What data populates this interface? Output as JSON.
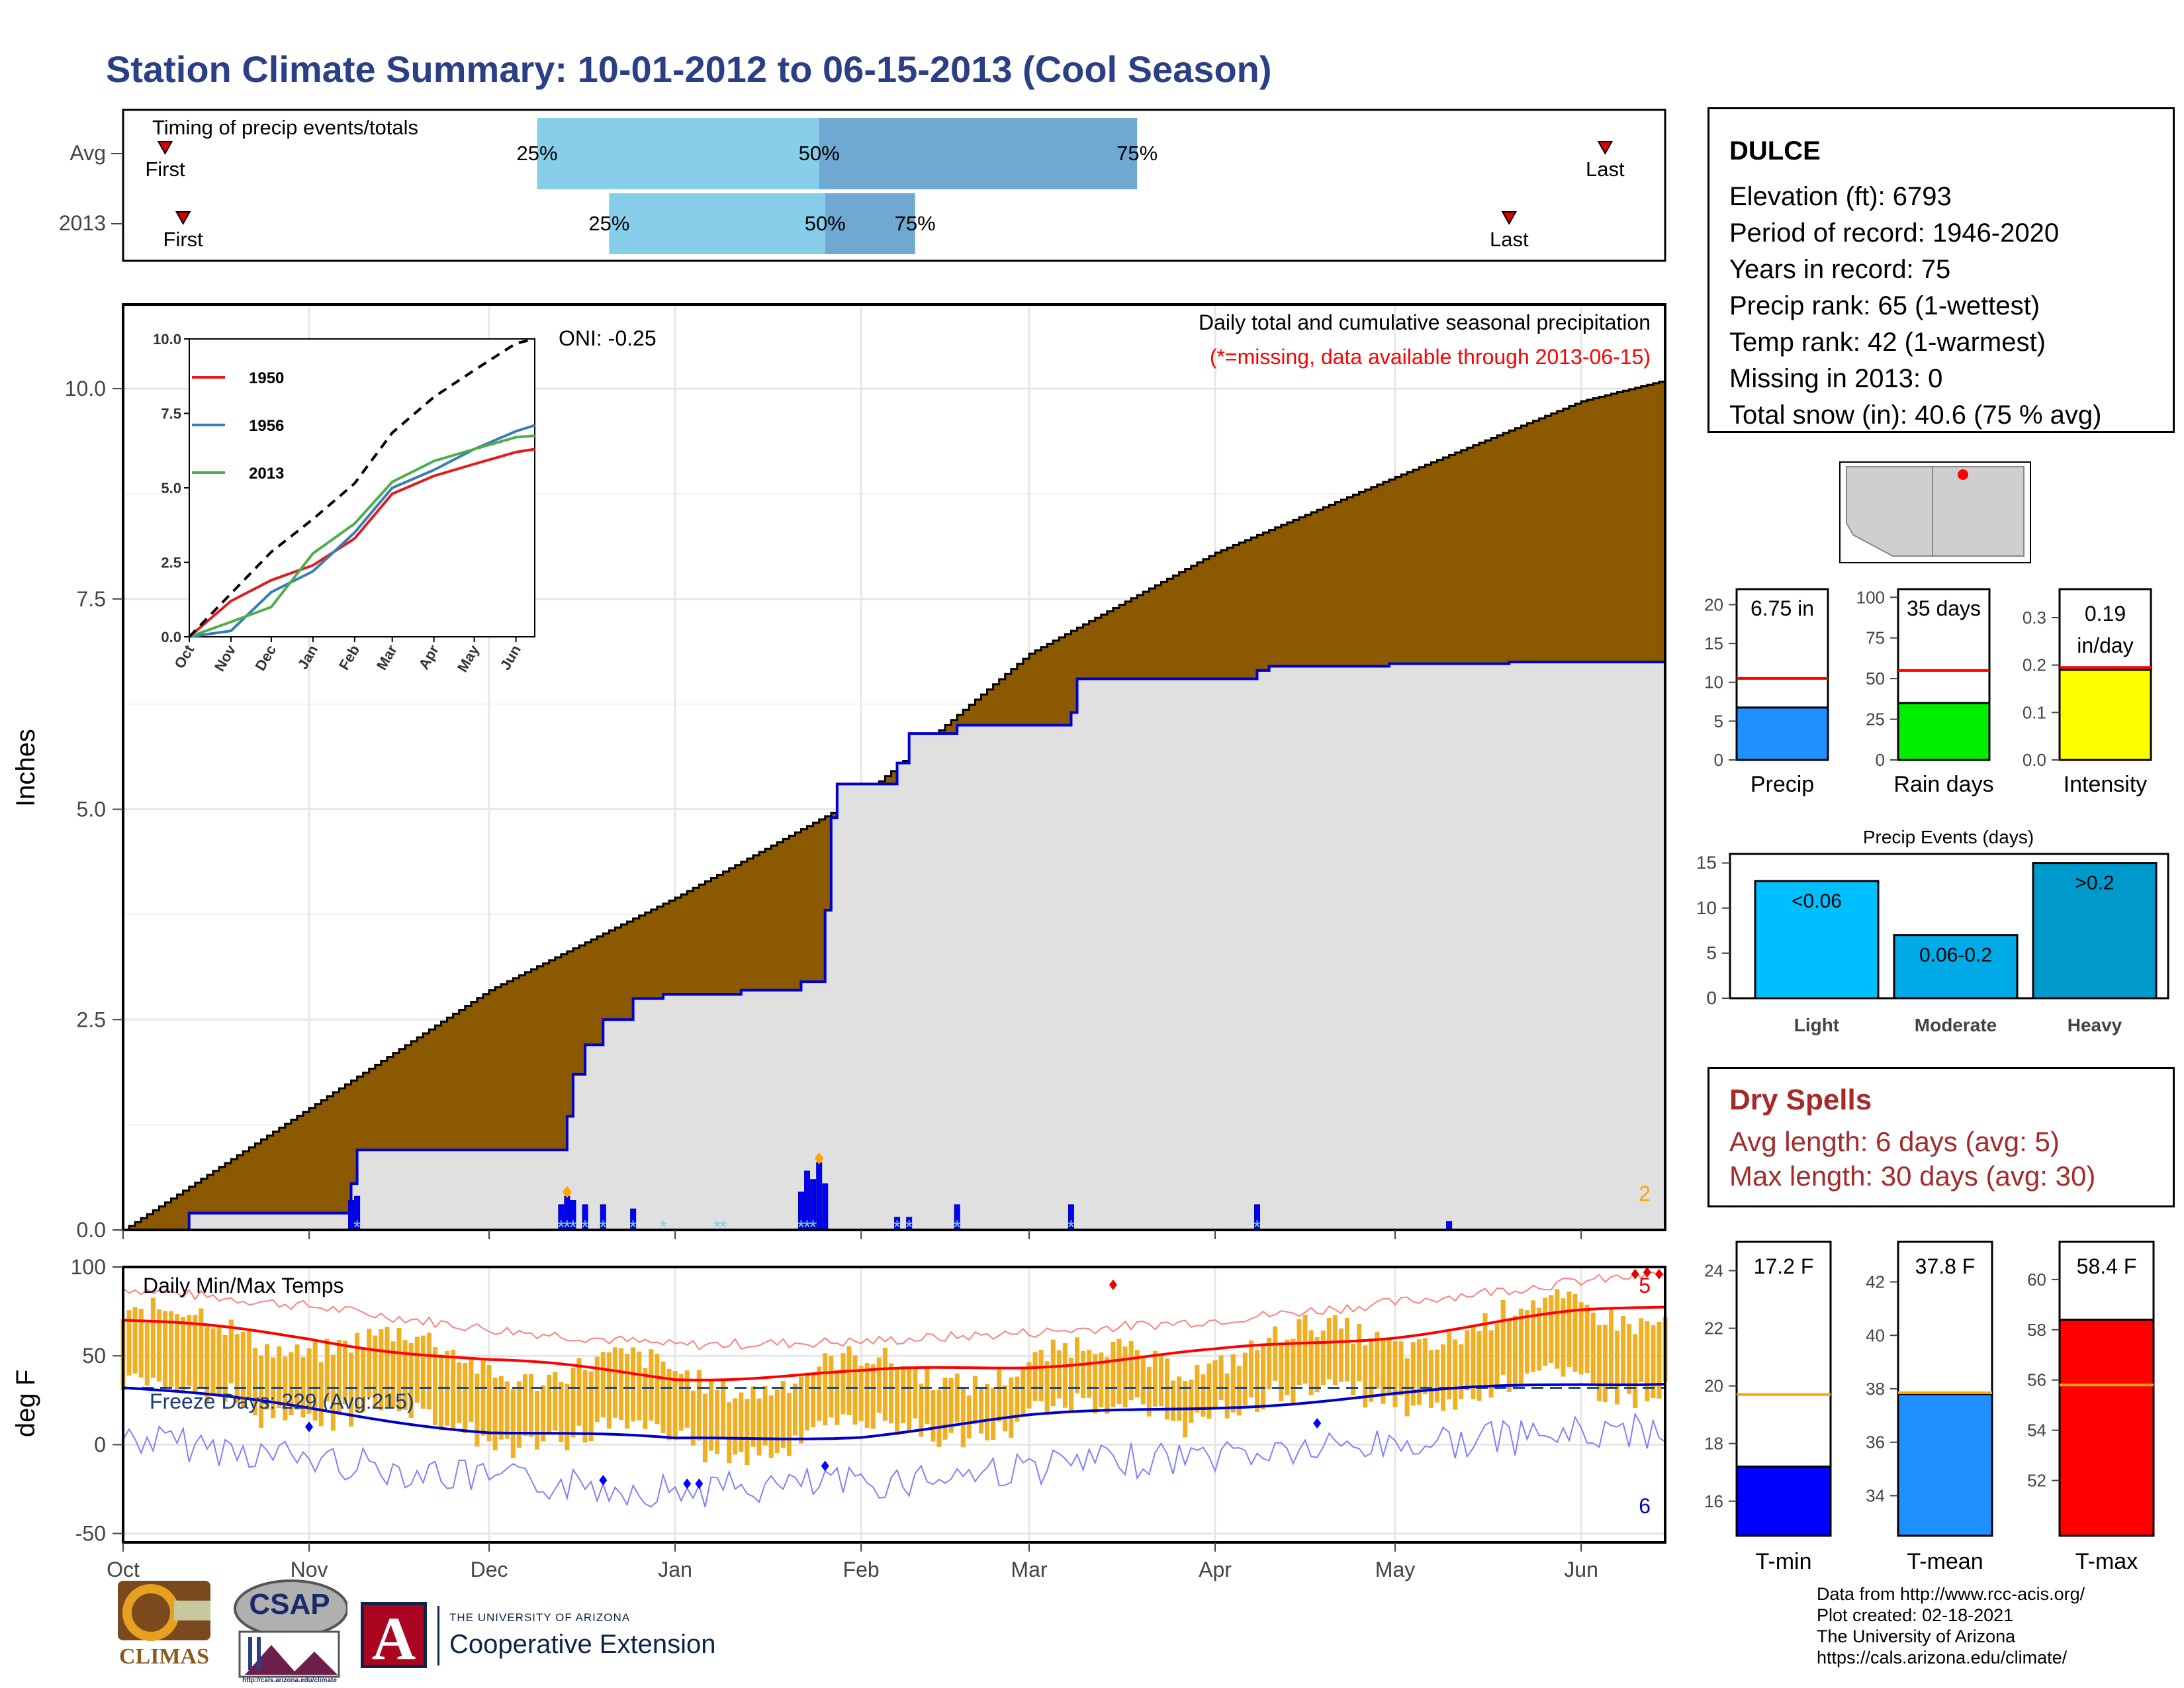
{
  "title": "Station Climate Summary: 10-01-2012 to 06-15-2013 (Cool Season)",
  "station": {
    "name": "DULCE",
    "lines": [
      "Elevation (ft): 6793",
      "Period of record: 1946-2020",
      "Years in record: 75",
      "Precip rank: 65 (1-wettest)",
      "Temp rank: 42 (1-warmest)",
      "Missing in 2013: 0",
      "Total snow (in): 40.6 (75 % avg)"
    ]
  },
  "dry_spells": {
    "title": "Dry Spells",
    "avg_length": "Avg length: 6 days (avg: 5)",
    "max_length": "Max length: 30 days (avg: 30)"
  },
  "footer": {
    "lines": [
      "Data from http://www.rcc-acis.org/",
      "Plot created: 02-18-2021",
      "The University of Arizona",
      "https://cals.arizona.edu/climate/"
    ]
  },
  "logos": {
    "climas": "CLIMAS",
    "csap": "CSAP",
    "csap_url": "http://cals.arizona.edu/climate",
    "ua_top": "THE UNIVERSITY OF ARIZONA",
    "ua_bottom": "Cooperative Extension",
    "ua_letter": "A"
  },
  "colors": {
    "title": "#2a3f85",
    "cum_avg_fill": "#8b5a00",
    "cum_obs_fill": "#e0e0e0",
    "obs_line": "#0000cc",
    "quartile_light": "#87ceeb",
    "quartile_dark": "#6fa8d0",
    "temp_bars": "#f0b020",
    "tmax_line": "#ff0000",
    "tmin_line": "#0000cc",
    "dry_spell": "#a52a2a"
  },
  "chart_data": [
    {
      "id": "timing",
      "type": "bar",
      "title": "Timing of precip events/totals",
      "rows": [
        "Avg",
        "2013"
      ],
      "x_range": [
        "10-01",
        "06-15"
      ],
      "series": [
        {
          "name": "Avg",
          "first": "10-08",
          "p25": "12-09",
          "p50": "01-25",
          "p75": "03-19",
          "last": "06-05",
          "labels": [
            "First",
            "25%",
            "50%",
            "75%",
            "Last"
          ]
        },
        {
          "name": "2013",
          "first": "10-11",
          "p25": "12-21",
          "p50": "01-26",
          "p75": "02-10",
          "last": "05-20",
          "labels": [
            "First",
            "25%",
            "50%",
            "75%",
            "Last"
          ]
        }
      ]
    },
    {
      "id": "cumulative",
      "type": "area",
      "title": "Daily total and cumulative seasonal precipitation",
      "subtitle": "(*=missing, data available through 2013-06-15)",
      "oni": "ONI: -0.25",
      "ylabel": "Inches",
      "ylim": [
        0,
        11
      ],
      "yticks": [
        "0.0",
        "2.5",
        "5.0",
        "7.5",
        "10.0"
      ],
      "xticks": [
        "Oct",
        "Nov",
        "Dec",
        "Jan",
        "Feb",
        "Mar",
        "Apr",
        "May",
        "Jun"
      ],
      "corner_count": "2",
      "avg_cumulative": {
        "x": [
          "10-01",
          "11-01",
          "12-01",
          "01-01",
          "02-01",
          "03-01",
          "04-01",
          "05-01",
          "06-01",
          "06-15"
        ],
        "y": [
          0.0,
          1.45,
          2.85,
          3.95,
          5.15,
          6.85,
          8.05,
          8.95,
          9.85,
          10.1
        ]
      },
      "obs_cumulative": {
        "x": [
          "10-01",
          "10-12",
          "11-08",
          "11-09",
          "12-13",
          "12-14",
          "12-15",
          "12-17",
          "12-20",
          "12-25",
          "12-30",
          "01-12",
          "01-22",
          "01-26",
          "01-27",
          "01-28",
          "02-07",
          "02-09",
          "02-17",
          "03-08",
          "03-09",
          "04-08",
          "04-10",
          "04-30",
          "05-01",
          "05-20",
          "06-15"
        ],
        "y": [
          0.0,
          0.2,
          0.55,
          0.95,
          0.95,
          1.35,
          1.85,
          2.2,
          2.5,
          2.75,
          2.8,
          2.85,
          2.95,
          3.8,
          4.9,
          5.3,
          5.55,
          5.9,
          6.0,
          6.15,
          6.55,
          6.65,
          6.7,
          6.73,
          6.73,
          6.75,
          6.75
        ]
      },
      "daily_precip": {
        "x": [
          "11-08",
          "11-09",
          "12-13",
          "12-14",
          "12-15",
          "12-17",
          "12-20",
          "12-25",
          "01-22",
          "01-23",
          "01-24",
          "01-25",
          "01-26",
          "02-07",
          "02-09",
          "02-17",
          "03-08",
          "04-08",
          "05-10"
        ],
        "y": [
          0.35,
          0.4,
          0.3,
          0.4,
          0.35,
          0.3,
          0.3,
          0.25,
          0.45,
          0.7,
          0.6,
          0.8,
          0.55,
          0.15,
          0.15,
          0.3,
          0.3,
          0.3,
          0.1
        ]
      },
      "inset": {
        "ylim": [
          0,
          10
        ],
        "yticks": [
          "0.0",
          "2.5",
          "5.0",
          "7.5",
          "10.0"
        ],
        "xticks": [
          "Oct",
          "Nov",
          "Dec",
          "Jan",
          "Feb",
          "Mar",
          "Apr",
          "May",
          "Jun"
        ],
        "series": [
          {
            "name": "1950",
            "color": "#e41a1c",
            "y": [
              0,
              1.2,
              1.9,
              2.4,
              3.3,
              4.8,
              5.4,
              5.8,
              6.2,
              6.3
            ]
          },
          {
            "name": "1956",
            "color": "#377eb8",
            "y": [
              0,
              0.2,
              1.5,
              2.2,
              3.5,
              5.0,
              5.6,
              6.3,
              6.9,
              7.1
            ]
          },
          {
            "name": "2013",
            "color": "#4daf4a",
            "y": [
              0,
              0.5,
              1.0,
              2.8,
              3.8,
              5.2,
              5.9,
              6.3,
              6.7,
              6.75
            ]
          },
          {
            "name": "",
            "color": "#000000",
            "dash": true,
            "y": [
              0,
              1.45,
              2.85,
              3.95,
              5.15,
              6.85,
              8.05,
              8.95,
              9.85,
              10.1
            ]
          }
        ]
      }
    },
    {
      "id": "temps",
      "type": "bar",
      "title": "Daily Min/Max Temps",
      "ylabel": "deg F",
      "ylim": [
        -55,
        100
      ],
      "yticks": [
        "-50",
        "0",
        "50",
        "100"
      ],
      "xticks": [
        "Oct",
        "Nov",
        "Dec",
        "Jan",
        "Feb",
        "Mar",
        "Apr",
        "May",
        "Jun"
      ],
      "freeze_label": "Freeze Days: 229 (Avg:215)",
      "freeze_line": 32,
      "corner_count_low": "6",
      "corner_count_high": "5",
      "avg_tmax": {
        "x": [
          "10-01",
          "11-01",
          "12-01",
          "01-01",
          "02-01",
          "03-01",
          "04-01",
          "05-01",
          "06-01",
          "06-15"
        ],
        "y": [
          70,
          60,
          47,
          38,
          40,
          45,
          52,
          62,
          74,
          78
        ]
      },
      "avg_tmin": {
        "x": [
          "10-01",
          "11-01",
          "12-01",
          "01-01",
          "02-01",
          "03-01",
          "04-01",
          "05-01",
          "06-01",
          "06-15"
        ],
        "y": [
          32,
          20,
          8,
          2,
          6,
          15,
          22,
          28,
          34,
          36
        ]
      }
    },
    {
      "id": "summary_precip",
      "type": "bar",
      "categories": [
        "Precip",
        "Rain days",
        "Intensity"
      ],
      "values": [
        6.75,
        35,
        0.19
      ],
      "averages": [
        10.5,
        55,
        0.195
      ],
      "labels": [
        "6.75 in",
        "35 days",
        "0.19 in/day"
      ],
      "ylims": [
        [
          0,
          22
        ],
        [
          0,
          105
        ],
        [
          0,
          0.36
        ]
      ],
      "yticks": [
        [
          "0",
          "5",
          "10",
          "15",
          "20"
        ],
        [
          "0",
          "25",
          "50",
          "75",
          "100"
        ],
        [
          "0.0",
          "0.1",
          "0.2",
          "0.3"
        ]
      ],
      "colors": [
        "#1e90ff",
        "#00ee00",
        "#ffff00"
      ]
    },
    {
      "id": "precip_events",
      "type": "bar",
      "title": "Precip Events (days)",
      "categories": [
        "Light",
        "Moderate",
        "Heavy"
      ],
      "values": [
        13,
        7,
        15
      ],
      "labels": [
        "<0.06",
        "0.06-0.2",
        ">0.2"
      ],
      "ylim": [
        0,
        16
      ],
      "yticks": [
        "0",
        "5",
        "10",
        "15"
      ],
      "colors": [
        "#00bfff",
        "#00aae6",
        "#0099cc"
      ]
    },
    {
      "id": "summary_temps",
      "type": "bar",
      "categories": [
        "T-min",
        "T-mean",
        "T-max"
      ],
      "values": [
        17.2,
        37.8,
        58.4
      ],
      "averages": [
        19.7,
        37.85,
        55.8
      ],
      "labels": [
        "17.2 F",
        "37.8 F",
        "58.4 F"
      ],
      "ylims": [
        [
          14.8,
          25
        ],
        [
          32.5,
          43.5
        ],
        [
          49.8,
          61.5
        ]
      ],
      "yticks": [
        [
          "16",
          "18",
          "20",
          "22",
          "24"
        ],
        [
          "34",
          "36",
          "38",
          "40",
          "42"
        ],
        [
          "52",
          "54",
          "56",
          "58",
          "60"
        ]
      ],
      "colors": [
        "#0000ff",
        "#1e90ff",
        "#ff0000"
      ]
    }
  ]
}
